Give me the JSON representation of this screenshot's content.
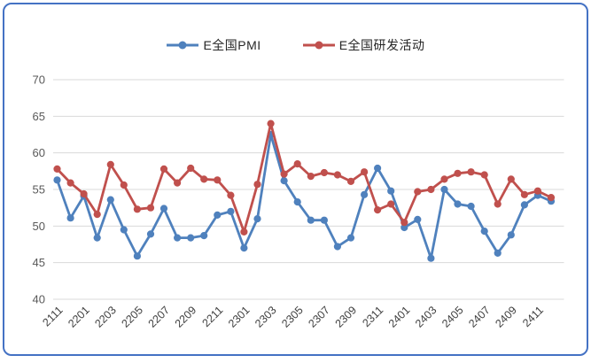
{
  "frame": {
    "border_color": "#4472c4",
    "background": "#ffffff"
  },
  "chart_data": {
    "type": "line",
    "title": "",
    "xlabel": "",
    "ylabel": "",
    "categories": [
      "2111",
      "2112",
      "2201",
      "2202",
      "2203",
      "2204",
      "2205",
      "2206",
      "2207",
      "2208",
      "2209",
      "2210",
      "2211",
      "2212",
      "2301",
      "2302",
      "2303",
      "2304",
      "2305",
      "2306",
      "2307",
      "2308",
      "2309",
      "2310",
      "2311",
      "2312",
      "2401",
      "2402",
      "2403",
      "2404",
      "2405",
      "2406",
      "2407",
      "2408",
      "2409",
      "2410",
      "2411",
      "2412"
    ],
    "x_tick_labels": [
      "2111",
      "2201",
      "2203",
      "2205",
      "2207",
      "2209",
      "2211",
      "2301",
      "2303",
      "2305",
      "2307",
      "2309",
      "2311",
      "2401",
      "2403",
      "2405",
      "2407",
      "2409",
      "2411"
    ],
    "series": [
      {
        "name": "E全国PMI",
        "color": "#4f81bd",
        "marker": "circle",
        "values": [
          56.3,
          51.1,
          54.1,
          48.4,
          53.6,
          49.5,
          45.9,
          48.9,
          52.4,
          48.4,
          48.4,
          48.7,
          51.5,
          52.0,
          47.0,
          51.0,
          62.5,
          56.2,
          53.3,
          50.8,
          50.8,
          47.2,
          48.4,
          54.3,
          57.9,
          54.8,
          49.8,
          50.9,
          45.6,
          55.0,
          53.0,
          52.7,
          49.3,
          46.3,
          48.8,
          52.9,
          54.2,
          53.4
        ]
      },
      {
        "name": "E全国研发活动",
        "color": "#c0504d",
        "marker": "circle",
        "values": [
          57.8,
          55.9,
          54.4,
          51.6,
          58.4,
          55.6,
          52.3,
          52.5,
          57.8,
          55.9,
          57.9,
          56.4,
          56.3,
          54.2,
          49.2,
          55.7,
          64.0,
          57.1,
          58.5,
          56.8,
          57.3,
          57.0,
          56.1,
          57.4,
          52.2,
          53.0,
          50.5,
          54.7,
          55.0,
          56.4,
          57.2,
          57.4,
          57.0,
          53.0,
          56.4,
          54.3,
          54.8,
          53.9
        ]
      }
    ],
    "ylim": [
      40,
      70
    ],
    "y_ticks": [
      40,
      45,
      50,
      55,
      60,
      65,
      70
    ],
    "grid": true,
    "gridline_color": "#d9d9d9",
    "axis_label_color": "#595959",
    "x_label_rotation_deg": -45,
    "legend_position": "top-center"
  }
}
